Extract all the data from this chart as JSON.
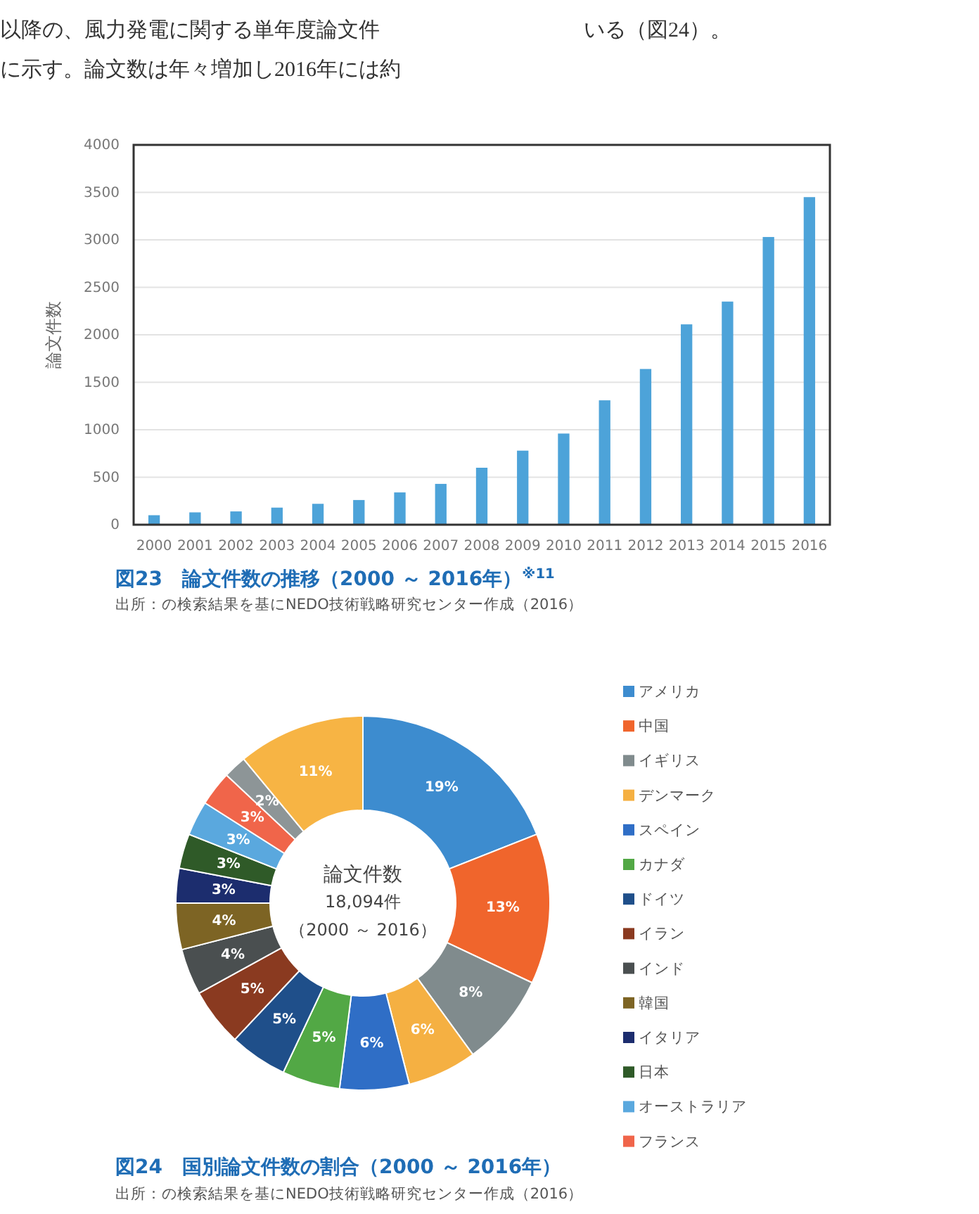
{
  "chart_data": [
    {
      "type": "bar",
      "title": "図23　論文件数の推移（2000 ～ 2016年）$^{※11}$",
      "ylabel": "論文件数",
      "annotations": [
        "以降の、風力発電に関する単年度論文件",
        "に示す。論文数は年々増加し2016年には約",
        "いる（図24）。",
        "出所：の検索結果を基にNEDO技術戦略研究センター作成（2016）"
      ],
      "categories": [
        "2000",
        "2001",
        "2002",
        "2003",
        "2004",
        "2005",
        "2006",
        "2007",
        "2008",
        "2009",
        "2010",
        "2011",
        "2012",
        "2013",
        "2014",
        "2015",
        "2016"
      ],
      "values": [
        100,
        130,
        140,
        180,
        220,
        260,
        340,
        430,
        600,
        780,
        960,
        1310,
        1640,
        2110,
        2350,
        3030,
        3450
      ],
      "color": "#4da3d9",
      "ylim": [
        0,
        4000
      ],
      "yticks": [
        0,
        500,
        1000,
        1500,
        2000,
        2500,
        3000,
        3500,
        4000
      ],
      "grid": "y"
    },
    {
      "type": "donut",
      "title": "図24　国別論文件数の割合（2000 ～ 2016年）",
      "annotations": [
        "論文件数",
        "18,094件",
        "（2000 ～ 2016）",
        "出所：の検索結果を基にNEDO技術戦略研究センター作成（2016）"
      ],
      "categories": [
        "アメリカ",
        "中国",
        "イギリス",
        "デンマーク",
        "スペイン",
        "カナダ",
        "ドイツ",
        "イラン",
        "インド",
        "韓国",
        "イタリア",
        "日本",
        "オーストラリア",
        "フランス",
        null,
        null
      ],
      "values": [
        19,
        13,
        8,
        6,
        6,
        5,
        5,
        5,
        4,
        4,
        3,
        3,
        3,
        3,
        2,
        11
      ],
      "colors": [
        "#3d8ccf",
        "#f0652c",
        "#808b8d",
        "#f5b042",
        "#2f6ec6",
        "#52a845",
        "#1f4f8a",
        "#8a3a20",
        "#4a4f50",
        "#7d6424",
        "#1c2d6e",
        "#2f5a28",
        "#5aa8de",
        "#f0654a",
        "#8d9597",
        "#f7b444"
      ],
      "value_labels": [
        "19%",
        "13%",
        "8%",
        "6%",
        "6%",
        "5%",
        "5%",
        "5%",
        "4%",
        "4%",
        "3%",
        "3%",
        "3%",
        "3%",
        "2%",
        "11%"
      ],
      "legend": "right"
    }
  ]
}
